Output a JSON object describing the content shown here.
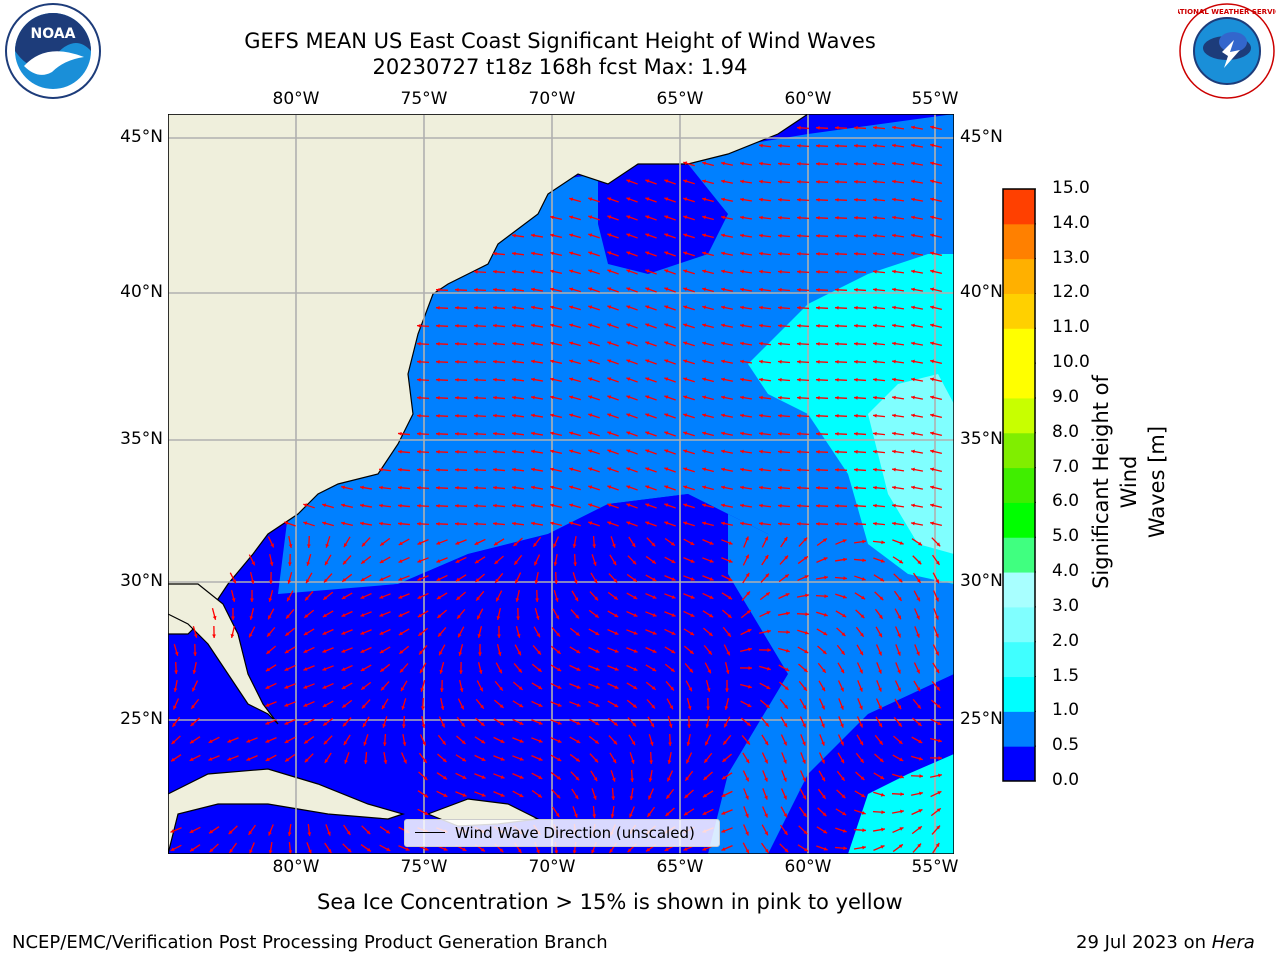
{
  "header": {
    "title_line1": "GEFS MEAN US East Coast Significant Height of Wind Waves",
    "title_line2": "20230727 t18z 168h fcst   Max: 1.94",
    "left_logo_text": "NOAA",
    "right_logo_text": "NATIONAL WEATHER SERVICE"
  },
  "map": {
    "lon_labels": [
      "80°W",
      "75°W",
      "70°W",
      "65°W",
      "60°W",
      "55°W"
    ],
    "lat_labels": [
      "45°N",
      "40°N",
      "35°N",
      "30°N",
      "25°N"
    ],
    "ocean_colors": {
      "dark_blue": "#0000ff",
      "medium_blue": "#0080ff",
      "cyan": "#00ffff",
      "light_cyan": "#80ffff",
      "land": "#efefdc",
      "arrow": "#ff0000"
    },
    "legend_label": "Wind Wave Direction (unscaled)"
  },
  "colorbar": {
    "label_line1": "Significant Height of Wind",
    "label_line2": "Waves [m]",
    "ticks": [
      "0.0",
      "0.5",
      "1.0",
      "1.5",
      "2.0",
      "3.0",
      "4.0",
      "5.0",
      "6.0",
      "7.0",
      "8.0",
      "9.0",
      "10.0",
      "11.0",
      "12.0",
      "13.0",
      "14.0",
      "15.0"
    ],
    "colors": [
      "#0000ff",
      "#0080ff",
      "#00ffff",
      "#40ffff",
      "#80ffff",
      "#a8ffff",
      "#40ff80",
      "#00ff00",
      "#40ee00",
      "#80ee00",
      "#c8ff00",
      "#ffff00",
      "#ffff00",
      "#ffd000",
      "#ffb000",
      "#ff8000",
      "#ff4000",
      "#ff0000"
    ]
  },
  "footer": {
    "note": "Sea Ice Concentration > 15% is shown in pink to yellow",
    "left": "NCEP/EMC/Verification Post Processing Product Generation Branch",
    "right_date": "29 Jul 2023 on ",
    "right_host": "Hera"
  }
}
